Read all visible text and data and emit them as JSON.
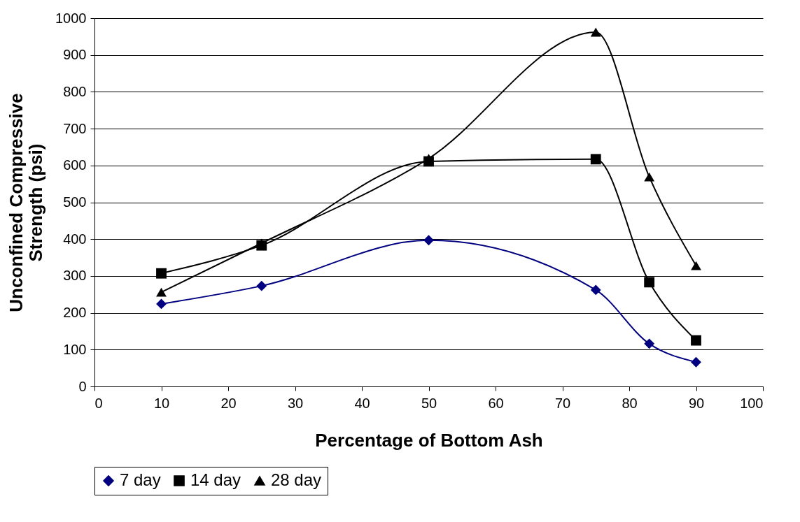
{
  "chart_data": {
    "type": "line",
    "xlabel": "Percentage of Bottom Ash",
    "ylabel": "Unconfined Compressive Strength (psi)",
    "x": [
      10,
      25,
      50,
      75,
      83,
      90
    ],
    "series": [
      {
        "name": "7 day",
        "color": "#000080",
        "marker": "diamond",
        "values": [
          224,
          273,
          397,
          262,
          116,
          66
        ]
      },
      {
        "name": "14 day",
        "color": "#000000",
        "marker": "square",
        "values": [
          307,
          383,
          611,
          617,
          283,
          125
        ]
      },
      {
        "name": "28 day",
        "color": "#000000",
        "marker": "triangle",
        "values": [
          256,
          389,
          619,
          962,
          569,
          328
        ]
      }
    ],
    "xlim": [
      0,
      100
    ],
    "xticks": [
      0,
      10,
      20,
      30,
      40,
      50,
      60,
      70,
      80,
      90,
      100
    ],
    "ylim": [
      0,
      1000
    ],
    "yticks": [
      0,
      100,
      200,
      300,
      400,
      500,
      600,
      700,
      800,
      900,
      1000
    ],
    "grid": "y",
    "legend": "bottom",
    "line_style": "solid"
  }
}
